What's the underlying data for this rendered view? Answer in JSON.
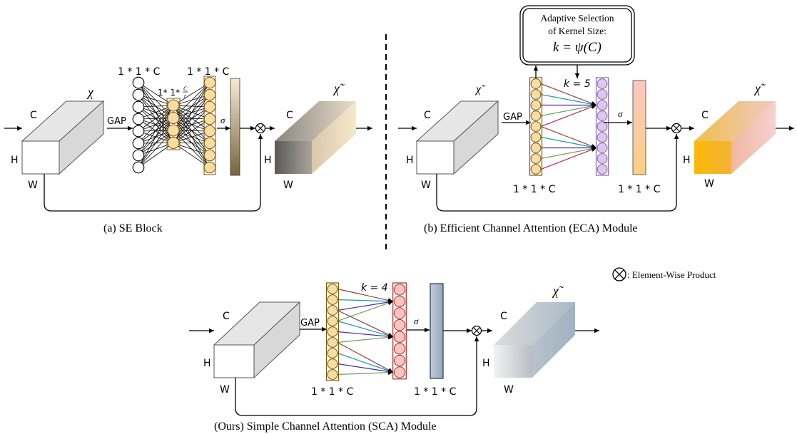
{
  "colors": {
    "yellow": "#f8dca0",
    "yellow_stroke": "#7a5a10",
    "purple": "#dcc8ea",
    "purple_stroke": "#8a66b0",
    "pink": "#f8c4c0",
    "pink_stroke": "#a0302a",
    "bar_se": "#7a6438",
    "bar_eca": "#fcd080",
    "bar_sca": "#a8b8c8",
    "line_colors": [
      "#9a3a3a",
      "#1a9aaa",
      "#4a2aaa",
      "#70a060",
      "#b02060"
    ]
  },
  "se": {
    "caption": "(a) SE Block",
    "x_label": "χ",
    "out_label": "χ̃",
    "c": "C",
    "h": "H",
    "w": "W",
    "gap": "GAP",
    "fc1_label": "1 * 1 * C",
    "fc2_label": "1 * 1 * C",
    "mid_label": "1* 1*",
    "frac_num": "C",
    "frac_den": "r",
    "sigma": "σ"
  },
  "eca": {
    "caption": "(b) Efficient Channel Attention (ECA) Module",
    "box_line1": "Adaptive Selection",
    "box_line2": "of Kernel Size:",
    "box_formula": "k = ψ(C)",
    "k_label": "k = 5",
    "in_label": "χ̃",
    "out_label": "χ̃",
    "c": "C",
    "h": "H",
    "w": "W",
    "gap": "GAP",
    "vec1_label": "1 * 1 * C",
    "vec2_label": "1 * 1 * C",
    "sigma": "σ"
  },
  "sca": {
    "caption": "(Ours) Simple Channel Attention (SCA) Module",
    "k_label": "k = 4",
    "out_label": "χ̃",
    "c": "C",
    "h": "H",
    "w": "W",
    "gap": "GAP",
    "vec1_label": "1 * 1 * C",
    "vec2_label": "1 * 1 * C",
    "sigma": "σ"
  },
  "legend": {
    "text": ": Element-Wise Product"
  }
}
